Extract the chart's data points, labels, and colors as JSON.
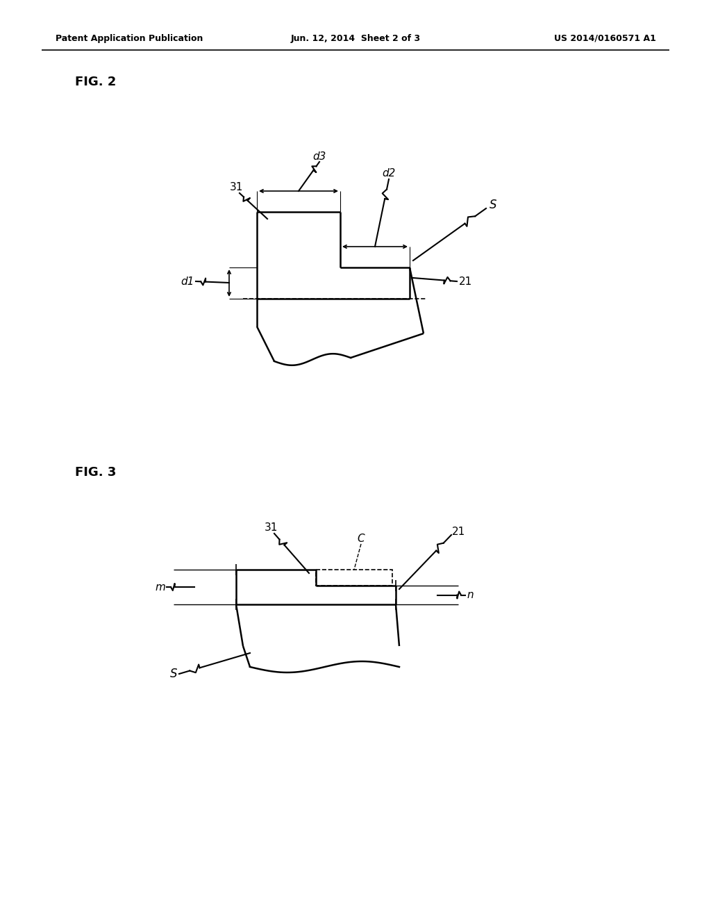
{
  "bg_color": "#ffffff",
  "line_color": "#000000",
  "header_left": "Patent Application Publication",
  "header_mid": "Jun. 12, 2014  Sheet 2 of 3",
  "header_right": "US 2014/0160571 A1",
  "fig2_label": "FIG. 2",
  "fig3_label": "FIG. 3"
}
